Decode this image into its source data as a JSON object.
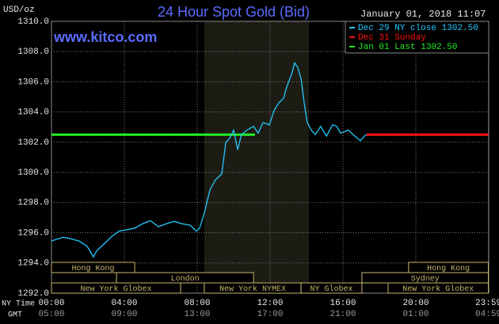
{
  "chart_data": {
    "type": "line",
    "title": "24 Hour Spot Gold (Bid)",
    "website": "www.kitco.com",
    "timestamp": "January 01, 2018 11:07",
    "y_unit": "USD/oz",
    "x_label": "NY Time",
    "x2_label": "GMT",
    "xlim": [
      0,
      24
    ],
    "ylim": [
      1292,
      1310
    ],
    "xticks": [
      {
        "value": 0,
        "label": "00:00"
      },
      {
        "value": 4,
        "label": "04:00"
      },
      {
        "value": 8,
        "label": "08:00"
      },
      {
        "value": 12,
        "label": "12:00"
      },
      {
        "value": 16,
        "label": "16:00"
      },
      {
        "value": 20,
        "label": "20:00"
      },
      {
        "value": 23.98,
        "label": "23:59"
      }
    ],
    "x2tick_labels": [
      "05:00",
      "09:00",
      "13:00",
      "17:00",
      "21:00",
      "01:00",
      "04:59"
    ],
    "yticks": [
      {
        "value": 1292,
        "label": "1292.0"
      },
      {
        "value": 1294,
        "label": "1294.0"
      },
      {
        "value": 1296,
        "label": "1296.0"
      },
      {
        "value": 1298,
        "label": "1298.0"
      },
      {
        "value": 1300,
        "label": "1300.0"
      },
      {
        "value": 1302,
        "label": "1302.0"
      },
      {
        "value": 1304,
        "label": "1304.0"
      },
      {
        "value": 1306,
        "label": "1306.0"
      },
      {
        "value": 1308,
        "label": "1308.0"
      },
      {
        "value": 1310,
        "label": "1310.0"
      }
    ],
    "grid": true,
    "shaded_hours": [
      8.39,
      14.13
    ],
    "series": [
      {
        "name": "Dec 29 NY close 1302.50",
        "color": "#22c8ff",
        "x": [
          0,
          0.22,
          0.65,
          1.09,
          1.52,
          1.96,
          2.3,
          2.48,
          2.83,
          3.26,
          3.7,
          4.13,
          4.57,
          5,
          5.43,
          5.87,
          6.3,
          6.74,
          7.17,
          7.61,
          7.96,
          8.13,
          8.39,
          8.7,
          9,
          9.35,
          9.57,
          9.78,
          10,
          10.22,
          10.43,
          10.74,
          11.09,
          11.35,
          11.61,
          11.96,
          12.22,
          12.48,
          12.74,
          12.91,
          13.17,
          13.35,
          13.52,
          13.7,
          13.87,
          14.04,
          14.26,
          14.48,
          14.78,
          15.09,
          15.43,
          15.65,
          15.87,
          16.3,
          16.65,
          16.96,
          17.17,
          17.3
        ],
        "values": [
          1295.45,
          1295.55,
          1295.7,
          1295.6,
          1295.45,
          1295.1,
          1294.4,
          1294.8,
          1295.2,
          1295.7,
          1296.1,
          1296.2,
          1296.3,
          1296.6,
          1296.8,
          1296.4,
          1296.6,
          1296.75,
          1296.6,
          1296.5,
          1296.1,
          1296.3,
          1297.3,
          1298.85,
          1299.5,
          1299.9,
          1302.0,
          1302.25,
          1302.8,
          1301.5,
          1302.5,
          1302.8,
          1303.05,
          1302.6,
          1303.3,
          1303.15,
          1304.1,
          1304.6,
          1304.9,
          1305.65,
          1306.45,
          1307.25,
          1306.95,
          1306.2,
          1304.6,
          1303.3,
          1302.8,
          1302.5,
          1303.05,
          1302.4,
          1303.15,
          1303.05,
          1302.6,
          1302.8,
          1302.4,
          1302.1,
          1302.4,
          1302.5
        ]
      },
      {
        "name": "Dec 31 Sunday",
        "color": "#ff1010",
        "x": [
          17.3,
          23.98
        ],
        "values": [
          1302.5,
          1302.5
        ]
      },
      {
        "name": "Jan 01 Last 1302.50",
        "color": "#22ee22",
        "x": [
          0,
          11.17
        ],
        "values": [
          1302.5,
          1302.5
        ]
      }
    ],
    "sessions": [
      {
        "label": "Hong Kong",
        "row": 1,
        "start": 0,
        "end": 4.57
      },
      {
        "label": "Hong Kong",
        "row": 1,
        "start": 19.6,
        "end": 23.98
      },
      {
        "label": "London",
        "row": 2,
        "start": 3.57,
        "end": 11.09
      },
      {
        "label": "Sydney",
        "row": 2,
        "start": 17.04,
        "end": 23.98
      },
      {
        "label": "New York Globex",
        "row": 3,
        "start": 0,
        "end": 7.09
      },
      {
        "label": "New York NYMEX",
        "row": 3,
        "start": 8.39,
        "end": 13.7
      },
      {
        "label": "NY Globex",
        "row": 3,
        "start": 13.7,
        "end": 17.04
      },
      {
        "label": "New York Globex",
        "row": 3,
        "start": 18.48,
        "end": 23.98
      }
    ]
  }
}
